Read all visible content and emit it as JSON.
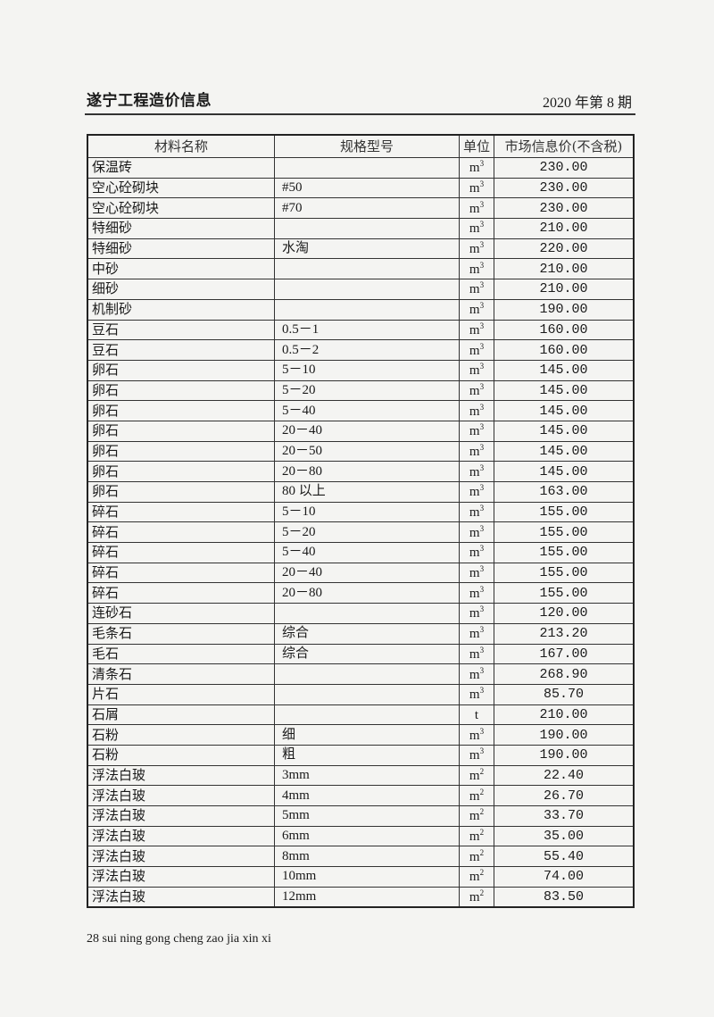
{
  "header": {
    "title": "遂宁工程造价信息",
    "issue": "2020 年第 8 期"
  },
  "table": {
    "columns": [
      "材料名称",
      "规格型号",
      "单位",
      "市场信息价(不含税)"
    ],
    "rows": [
      {
        "name": "保温砖",
        "spec": "",
        "unit": "m",
        "exp": "3",
        "price": "230.00"
      },
      {
        "name": "空心砼砌块",
        "spec": "#50",
        "unit": "m",
        "exp": "3",
        "price": "230.00"
      },
      {
        "name": "空心砼砌块",
        "spec": "#70",
        "unit": "m",
        "exp": "3",
        "price": "230.00"
      },
      {
        "name": "特细砂",
        "spec": "",
        "unit": "m",
        "exp": "3",
        "price": "210.00"
      },
      {
        "name": "特细砂",
        "spec": "水淘",
        "unit": "m",
        "exp": "3",
        "price": "220.00"
      },
      {
        "name": "中砂",
        "spec": "",
        "unit": "m",
        "exp": "3",
        "price": "210.00"
      },
      {
        "name": "细砂",
        "spec": "",
        "unit": "m",
        "exp": "3",
        "price": "210.00"
      },
      {
        "name": "机制砂",
        "spec": "",
        "unit": "m",
        "exp": "3",
        "price": "190.00"
      },
      {
        "name": "豆石",
        "spec": "0.5－1",
        "unit": "m",
        "exp": "3",
        "price": "160.00"
      },
      {
        "name": "豆石",
        "spec": "0.5－2",
        "unit": "m",
        "exp": "3",
        "price": "160.00"
      },
      {
        "name": "卵石",
        "spec": "5－10",
        "unit": "m",
        "exp": "3",
        "price": "145.00"
      },
      {
        "name": "卵石",
        "spec": "5－20",
        "unit": "m",
        "exp": "3",
        "price": "145.00"
      },
      {
        "name": "卵石",
        "spec": "5－40",
        "unit": "m",
        "exp": "3",
        "price": "145.00"
      },
      {
        "name": "卵石",
        "spec": "20－40",
        "unit": "m",
        "exp": "3",
        "price": "145.00"
      },
      {
        "name": "卵石",
        "spec": "20－50",
        "unit": "m",
        "exp": "3",
        "price": "145.00"
      },
      {
        "name": "卵石",
        "spec": "20－80",
        "unit": "m",
        "exp": "3",
        "price": "145.00"
      },
      {
        "name": "卵石",
        "spec": "80 以上",
        "unit": "m",
        "exp": "3",
        "price": "163.00"
      },
      {
        "name": "碎石",
        "spec": "5－10",
        "unit": "m",
        "exp": "3",
        "price": "155.00"
      },
      {
        "name": "碎石",
        "spec": "5－20",
        "unit": "m",
        "exp": "3",
        "price": "155.00"
      },
      {
        "name": "碎石",
        "spec": "5－40",
        "unit": "m",
        "exp": "3",
        "price": "155.00"
      },
      {
        "name": "碎石",
        "spec": "20－40",
        "unit": "m",
        "exp": "3",
        "price": "155.00"
      },
      {
        "name": "碎石",
        "spec": "20－80",
        "unit": "m",
        "exp": "3",
        "price": "155.00"
      },
      {
        "name": "连砂石",
        "spec": "",
        "unit": "m",
        "exp": "3",
        "price": "120.00"
      },
      {
        "name": "毛条石",
        "spec": "综合",
        "unit": "m",
        "exp": "3",
        "price": "213.20"
      },
      {
        "name": "毛石",
        "spec": "综合",
        "unit": "m",
        "exp": "3",
        "price": "167.00"
      },
      {
        "name": "清条石",
        "spec": "",
        "unit": "m",
        "exp": "3",
        "price": "268.90"
      },
      {
        "name": "片石",
        "spec": "",
        "unit": "m",
        "exp": "3",
        "price": "85.70"
      },
      {
        "name": "石屑",
        "spec": "",
        "unit": "t",
        "exp": "",
        "price": "210.00"
      },
      {
        "name": "石粉",
        "spec": "细",
        "unit": "m",
        "exp": "3",
        "price": "190.00"
      },
      {
        "name": "石粉",
        "spec": "粗",
        "unit": "m",
        "exp": "3",
        "price": "190.00"
      },
      {
        "name": "浮法白玻",
        "spec": "3mm",
        "unit": "m",
        "exp": "2",
        "price": "22.40"
      },
      {
        "name": "浮法白玻",
        "spec": "4mm",
        "unit": "m",
        "exp": "2",
        "price": "26.70"
      },
      {
        "name": "浮法白玻",
        "spec": "5mm",
        "unit": "m",
        "exp": "2",
        "price": "33.70"
      },
      {
        "name": "浮法白玻",
        "spec": "6mm",
        "unit": "m",
        "exp": "2",
        "price": "35.00"
      },
      {
        "name": "浮法白玻",
        "spec": "8mm",
        "unit": "m",
        "exp": "2",
        "price": "55.40"
      },
      {
        "name": "浮法白玻",
        "spec": "10mm",
        "unit": "m",
        "exp": "2",
        "price": "74.00"
      },
      {
        "name": "浮法白玻",
        "spec": "12mm",
        "unit": "m",
        "exp": "2",
        "price": "83.50"
      }
    ]
  },
  "footer": {
    "text": "28 sui ning gong cheng zao jia xin xi"
  }
}
